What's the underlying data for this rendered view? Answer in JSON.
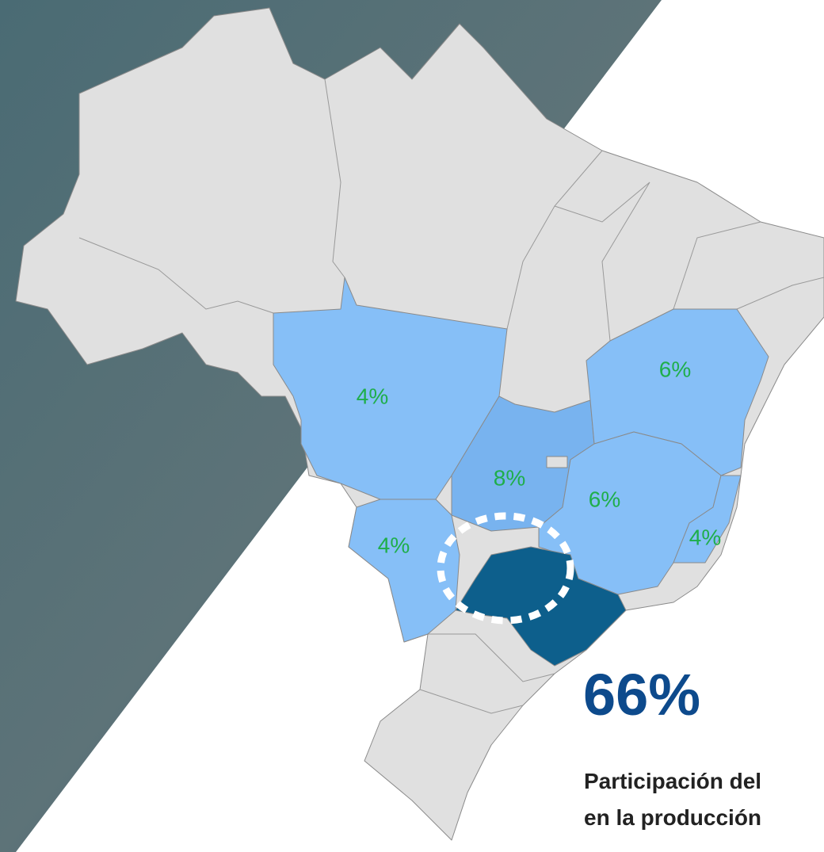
{
  "map": {
    "regions": [
      {
        "label": "4%"
      },
      {
        "label": "8%"
      },
      {
        "label": "4%"
      },
      {
        "label": "6%"
      },
      {
        "label": "6%"
      },
      {
        "label": "4%"
      }
    ]
  },
  "highlight": {
    "value": "66%",
    "caption": [
      "Participación del",
      "en la producción"
    ]
  }
}
